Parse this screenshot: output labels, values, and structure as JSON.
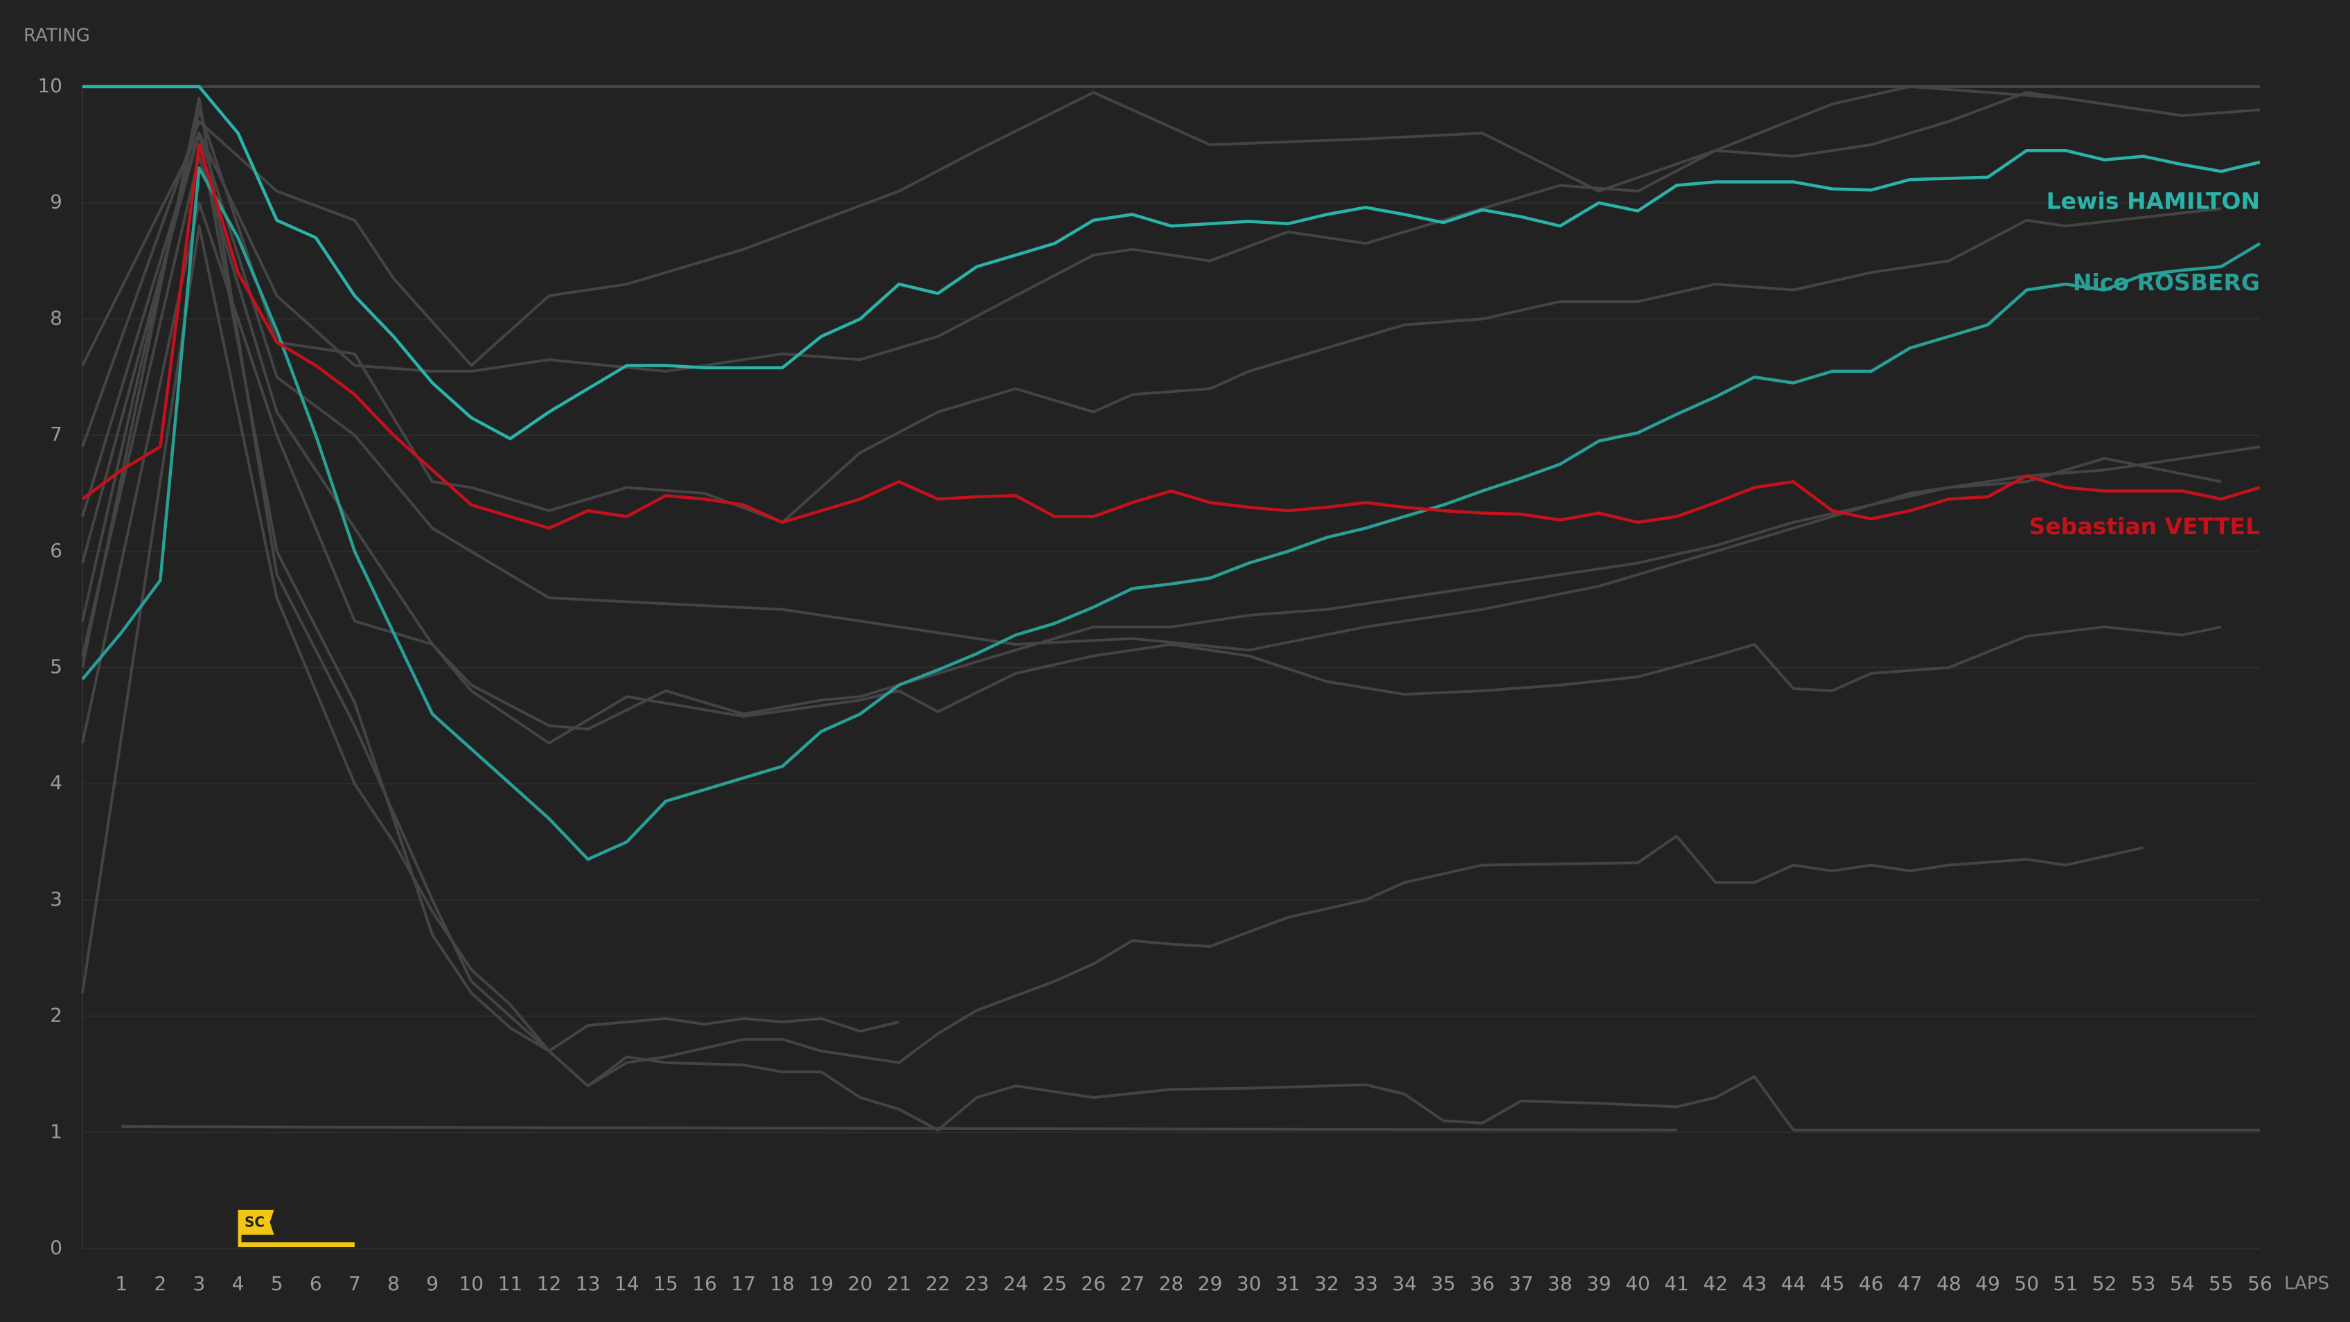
{
  "chart_data": {
    "type": "line",
    "y_axis_label": "RATING",
    "x_axis_label": "LAPS",
    "ylim": [
      0,
      10
    ],
    "yticks": [
      0,
      1,
      2,
      3,
      4,
      5,
      6,
      7,
      8,
      9,
      10
    ],
    "xlim": [
      0,
      56
    ],
    "xticks": [
      1,
      2,
      3,
      4,
      5,
      6,
      7,
      8,
      9,
      10,
      11,
      12,
      13,
      14,
      15,
      16,
      17,
      18,
      19,
      20,
      21,
      22,
      23,
      24,
      25,
      26,
      27,
      28,
      29,
      30,
      31,
      32,
      33,
      34,
      35,
      36,
      37,
      38,
      39,
      40,
      41,
      42,
      43,
      44,
      45,
      46,
      47,
      48,
      49,
      50,
      51,
      52,
      53,
      54,
      55,
      56
    ],
    "grid": true,
    "x": [
      0,
      1,
      2,
      3,
      4,
      5,
      6,
      7,
      8,
      9,
      10,
      11,
      12,
      13,
      14,
      15,
      16,
      17,
      18,
      19,
      20,
      21,
      22,
      23,
      24,
      25,
      26,
      27,
      28,
      29,
      30,
      31,
      32,
      33,
      34,
      35,
      36,
      37,
      38,
      39,
      40,
      41,
      42,
      43,
      44,
      45,
      46,
      47,
      48,
      49,
      50,
      51,
      52,
      53,
      54,
      55,
      56
    ],
    "annotations": [
      {
        "label": "SC",
        "x_start": 4,
        "x_end": 7,
        "color": "#f2c616"
      }
    ],
    "series": [
      {
        "color": "#444444",
        "x": [
          0,
          56
        ],
        "values": [
          10,
          10
        ]
      },
      {
        "color": "#444444",
        "x": [
          0,
          3,
          5,
          7,
          8,
          10,
          12,
          14,
          17,
          19,
          21,
          23,
          26,
          29,
          33,
          36,
          39,
          42,
          45,
          47,
          49,
          51,
          54,
          56
        ],
        "values": [
          6.9,
          9.7,
          9.1,
          8.85,
          8.35,
          7.6,
          8.2,
          8.3,
          8.6,
          8.85,
          9.1,
          9.45,
          9.95,
          9.5,
          9.55,
          9.6,
          9.1,
          9.45,
          9.85,
          10,
          9.95,
          9.9,
          9.75,
          9.8
        ]
      },
      {
        "color": "#444444",
        "x": [
          0,
          3,
          5,
          7,
          9,
          10,
          12,
          15,
          18,
          20,
          22,
          24,
          26,
          27,
          29,
          31,
          33,
          36,
          38,
          40,
          42,
          44,
          46,
          48,
          50,
          51,
          54
        ],
        "values": [
          7.6,
          9.6,
          8.2,
          7.6,
          7.55,
          7.55,
          7.65,
          7.55,
          7.7,
          7.65,
          7.85,
          8.2,
          8.55,
          8.6,
          8.5,
          8.75,
          8.65,
          8.95,
          9.15,
          9.1,
          9.45,
          9.4,
          9.5,
          9.7,
          9.95,
          9.9,
          9.75
        ]
      },
      {
        "color": "#444444",
        "x": [
          0,
          3,
          5,
          7,
          9,
          10,
          12,
          14,
          16,
          18,
          20,
          22,
          24,
          26,
          27,
          29,
          30,
          32,
          34,
          36,
          38,
          40,
          42,
          44,
          46,
          48,
          50,
          51,
          55
        ],
        "values": [
          5.4,
          9.8,
          7.8,
          7.7,
          6.6,
          6.55,
          6.35,
          6.55,
          6.5,
          6.25,
          6.85,
          7.2,
          7.4,
          7.2,
          7.35,
          7.4,
          7.55,
          7.75,
          7.95,
          8,
          8.15,
          8.15,
          8.3,
          8.25,
          8.4,
          8.5,
          8.85,
          8.8,
          8.95
        ]
      },
      {
        "color": "#444444",
        "x": [
          0,
          3,
          5,
          7,
          9,
          12,
          15,
          18,
          21,
          24,
          27,
          30,
          33,
          36,
          39,
          42,
          44,
          47,
          50,
          52,
          55,
          56
        ],
        "values": [
          5.9,
          9.6,
          7.5,
          7,
          6.2,
          5.6,
          5.55,
          5.5,
          5.35,
          5.2,
          5.25,
          5.15,
          5.35,
          5.5,
          5.7,
          6,
          6.2,
          6.5,
          6.65,
          6.7,
          6.85,
          6.9
        ]
      },
      {
        "color": "#444444",
        "x": [
          0,
          3,
          5,
          7,
          9,
          10,
          12,
          13,
          15,
          17,
          19,
          20,
          22,
          24,
          26,
          28,
          30,
          32,
          34,
          36,
          38,
          40,
          42,
          44,
          46,
          48,
          50,
          52,
          55
        ],
        "values": [
          5.1,
          9.4,
          7.2,
          6.2,
          5.2,
          4.85,
          4.5,
          4.47,
          4.8,
          4.6,
          4.72,
          4.75,
          4.95,
          5.15,
          5.35,
          5.35,
          5.45,
          5.5,
          5.6,
          5.7,
          5.8,
          5.9,
          6.05,
          6.25,
          6.4,
          6.55,
          6.6,
          6.8,
          6.6
        ]
      },
      {
        "color": "#444444",
        "x": [
          0,
          3,
          5,
          7,
          9,
          10,
          12,
          14,
          17,
          20,
          21,
          22,
          24,
          26,
          28,
          30,
          32,
          34,
          36,
          38,
          40,
          42,
          43,
          44,
          45,
          46,
          48,
          50,
          52,
          54,
          55
        ],
        "values": [
          4.35,
          9,
          7,
          5.4,
          5.2,
          4.8,
          4.35,
          4.75,
          4.58,
          4.72,
          4.8,
          4.62,
          4.95,
          5.1,
          5.2,
          5.1,
          4.88,
          4.77,
          4.8,
          4.85,
          4.92,
          5.1,
          5.2,
          4.82,
          4.8,
          4.95,
          5,
          5.27,
          5.35,
          5.28,
          5.35
        ]
      },
      {
        "color": "#444444",
        "x": [
          0,
          3,
          5,
          7,
          8,
          9,
          10,
          11,
          12,
          13,
          14,
          15,
          17,
          18,
          19,
          20,
          21,
          22,
          23,
          25,
          26,
          27,
          28,
          29,
          31,
          33,
          34,
          36,
          40,
          41,
          42,
          43,
          44,
          45,
          46,
          47,
          48,
          50,
          51,
          53
        ],
        "values": [
          2.2,
          8.8,
          5.6,
          4,
          3.5,
          2.9,
          2.4,
          2.1,
          1.7,
          1.4,
          1.6,
          1.65,
          1.8,
          1.8,
          1.7,
          1.65,
          1.6,
          1.85,
          2.05,
          2.3,
          2.45,
          2.65,
          2.62,
          2.6,
          2.85,
          3,
          3.15,
          3.3,
          3.32,
          3.55,
          3.15,
          3.15,
          3.3,
          3.25,
          3.3,
          3.25,
          3.3,
          3.35,
          3.3,
          3.45
        ]
      },
      {
        "color": "#444444",
        "x": [
          0,
          3,
          5,
          7,
          9,
          10,
          11,
          12,
          13,
          14,
          15,
          17,
          18,
          19,
          20,
          21,
          22,
          23,
          24,
          26,
          28,
          30,
          32,
          33,
          34,
          35,
          36,
          37,
          39,
          41,
          42,
          43,
          44,
          56
        ],
        "values": [
          5,
          9.9,
          5.8,
          4.5,
          3,
          2.3,
          2,
          1.7,
          1.4,
          1.65,
          1.6,
          1.58,
          1.52,
          1.52,
          1.3,
          1.2,
          1.02,
          1.3,
          1.4,
          1.3,
          1.37,
          1.38,
          1.4,
          1.41,
          1.33,
          1.1,
          1.08,
          1.27,
          1.25,
          1.22,
          1.3,
          1.48,
          1.02,
          1.02
        ]
      },
      {
        "color": "#444444",
        "x": [
          0,
          3,
          5,
          7,
          9,
          10,
          11,
          12,
          13,
          14,
          15,
          16,
          17,
          18,
          19,
          20,
          21
        ],
        "values": [
          6.3,
          9.6,
          6,
          4.7,
          2.7,
          2.2,
          1.9,
          1.7,
          1.92,
          1.95,
          1.98,
          1.93,
          1.98,
          1.95,
          1.98,
          1.87,
          1.95
        ]
      },
      {
        "color": "#444444",
        "x": [
          1,
          12,
          41
        ],
        "values": [
          1.05,
          1.04,
          1.02
        ]
      },
      {
        "name": "Lewis HAMILTON",
        "color": "#2ab3a9",
        "values": [
          10,
          10,
          10,
          10,
          9.6,
          8.85,
          8.7,
          8.2,
          7.85,
          7.45,
          7.15,
          6.97,
          7.2,
          7.4,
          7.6,
          7.6,
          7.58,
          7.58,
          7.58,
          7.85,
          8,
          8.3,
          8.22,
          8.45,
          8.55,
          8.65,
          8.85,
          8.9,
          8.8,
          8.82,
          8.84,
          8.82,
          8.9,
          8.96,
          8.9,
          8.83,
          8.94,
          8.88,
          8.8,
          9,
          8.93,
          9.15,
          9.18,
          9.18,
          9.18,
          9.12,
          9.11,
          9.2,
          9.21,
          9.22,
          9.45,
          9.45,
          9.37,
          9.4,
          9.33,
          9.27,
          9.35
        ]
      },
      {
        "name": "Nico ROSBERG",
        "color": "#29a097",
        "values": [
          4.9,
          5.3,
          5.75,
          9.3,
          8.7,
          7.9,
          7,
          6,
          5.3,
          4.6,
          4.3,
          4,
          3.7,
          3.35,
          3.5,
          3.85,
          3.95,
          4.05,
          4.15,
          4.45,
          4.6,
          4.85,
          4.98,
          5.12,
          5.28,
          5.38,
          5.52,
          5.68,
          5.72,
          5.77,
          5.9,
          6,
          6.12,
          6.2,
          6.3,
          6.4,
          6.52,
          6.63,
          6.75,
          6.95,
          7.02,
          7.18,
          7.33,
          7.5,
          7.45,
          7.55,
          7.55,
          7.75,
          7.85,
          7.95,
          8.25,
          8.3,
          8.25,
          8.38,
          8.42,
          8.45,
          8.65
        ]
      },
      {
        "name": "Sebastian VETTEL",
        "color": "#c4111b",
        "values": [
          6.45,
          6.7,
          6.9,
          9.5,
          8.4,
          7.8,
          7.6,
          7.35,
          7,
          6.7,
          6.4,
          6.3,
          6.2,
          6.35,
          6.3,
          6.48,
          6.45,
          6.4,
          6.25,
          6.35,
          6.45,
          6.6,
          6.45,
          6.47,
          6.48,
          6.3,
          6.3,
          6.42,
          6.52,
          6.42,
          6.38,
          6.35,
          6.38,
          6.42,
          6.38,
          6.35,
          6.33,
          6.32,
          6.27,
          6.33,
          6.25,
          6.3,
          6.42,
          6.55,
          6.6,
          6.35,
          6.28,
          6.35,
          6.45,
          6.47,
          6.65,
          6.55,
          6.52,
          6.52,
          6.52,
          6.45,
          6.55
        ]
      }
    ]
  }
}
